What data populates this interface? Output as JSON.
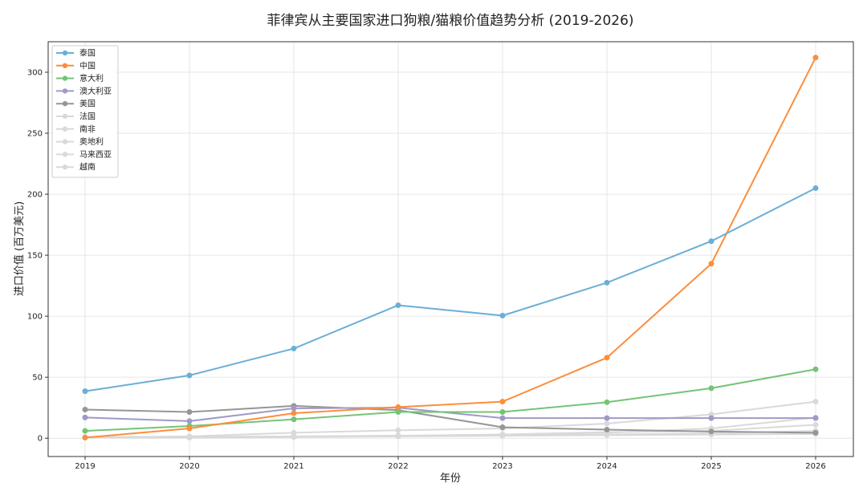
{
  "chart_data": {
    "type": "line",
    "title": "菲律宾从主要国家进口狗粮/猫粮价值趋势分析 (2019-2026)",
    "xlabel": "年份",
    "ylabel": "进口价值 (百万美元)",
    "x": [
      2019,
      2020,
      2021,
      2022,
      2023,
      2024,
      2025,
      2026
    ],
    "ylim": [
      -15,
      325
    ],
    "yticks": [
      0,
      50,
      100,
      150,
      200,
      250,
      300
    ],
    "grid": true,
    "legend_position": "top-left",
    "series": [
      {
        "name": "泰国",
        "color": "#6baed6",
        "values": [
          38.5,
          51.5,
          73.5,
          109,
          100.5,
          127.5,
          161.5,
          205
        ]
      },
      {
        "name": "中国",
        "color": "#fd8d3c",
        "values": [
          0.5,
          8,
          20.5,
          25.5,
          30,
          66,
          143,
          312
        ]
      },
      {
        "name": "意大利",
        "color": "#74c476",
        "values": [
          6,
          10,
          15.5,
          21.5,
          21.5,
          29.5,
          41,
          56.5
        ]
      },
      {
        "name": "澳大利亚",
        "color": "#9e9ac8",
        "values": [
          17,
          14,
          24.5,
          25,
          16.5,
          16.5,
          16.5,
          16.5
        ]
      },
      {
        "name": "美国",
        "color": "#969696",
        "values": [
          23.5,
          21.5,
          26.5,
          23,
          9,
          7,
          5.5,
          4.5
        ]
      },
      {
        "name": "法国",
        "color": "#d9d9d9",
        "values": [
          0.5,
          1.5,
          4.5,
          6.5,
          8,
          12,
          19.5,
          30
        ]
      },
      {
        "name": "南非",
        "color": "#d9d9d9",
        "values": [
          0.5,
          0.5,
          1,
          2,
          3,
          4.5,
          8,
          17
        ]
      },
      {
        "name": "奥地利",
        "color": "#d9d9d9",
        "values": [
          1,
          1,
          1.5,
          2,
          3,
          5,
          6,
          11
        ]
      },
      {
        "name": "马来西亚",
        "color": "#d9d9d9",
        "values": [
          0.5,
          1,
          1.5,
          2,
          2.5,
          3,
          4,
          6
        ]
      },
      {
        "name": "越南",
        "color": "#d9d9d9",
        "values": [
          0.5,
          0.5,
          1,
          1.5,
          2,
          2.5,
          3,
          3.5
        ]
      }
    ]
  }
}
